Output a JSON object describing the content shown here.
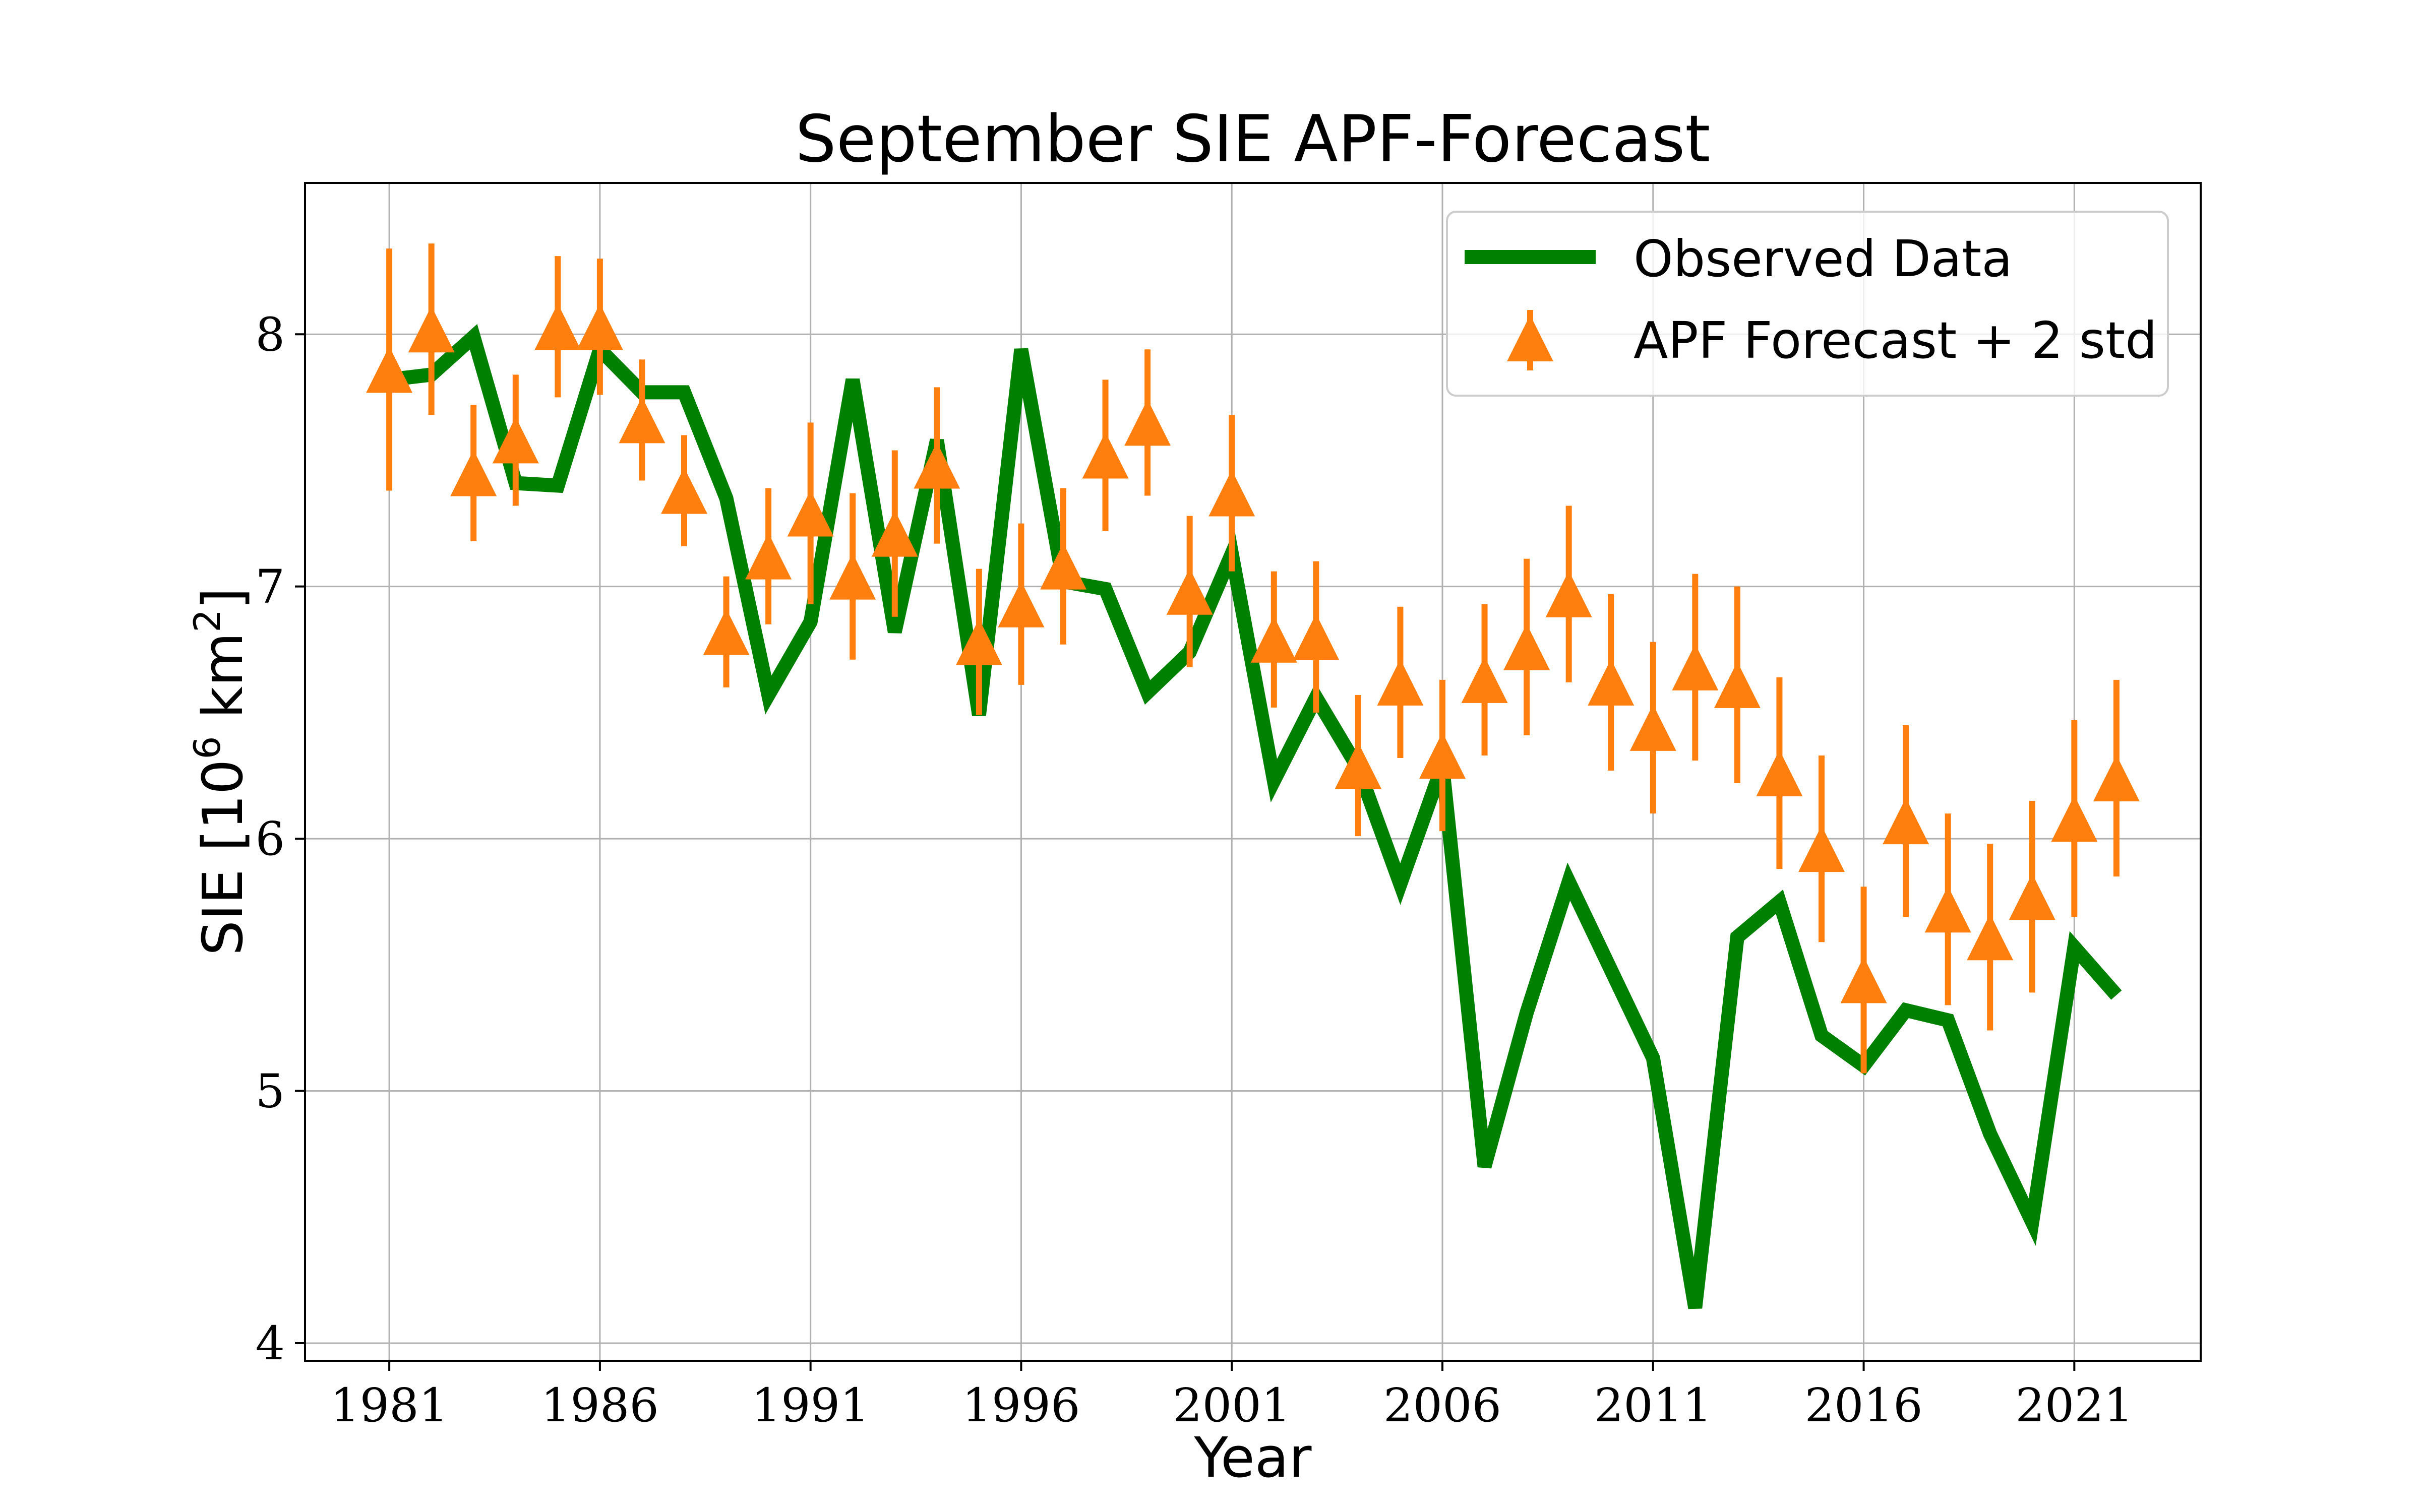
{
  "chart_data": {
    "type": "line",
    "title": "September SIE APF-Forecast",
    "xlabel": "Year",
    "ylabel": "SIE [10^6 km^2]",
    "ylabel_parts": {
      "main": "SIE [10",
      "exp1": "6",
      "mid": " km",
      "exp2": "2",
      "end": "]"
    },
    "xlim": [
      1979,
      2024
    ],
    "ylim": [
      3.93,
      8.6
    ],
    "xticks": [
      1981,
      1986,
      1991,
      1996,
      2001,
      2006,
      2011,
      2016,
      2021
    ],
    "yticks": [
      4,
      5,
      6,
      7,
      8
    ],
    "grid": true,
    "legend_position": "top-right",
    "colors": {
      "observed": "#008000",
      "forecast": "#ff7f0e"
    },
    "series": [
      {
        "name": "Observed Data",
        "x": [
          1981,
          1982,
          1983,
          1984,
          1985,
          1986,
          1987,
          1988,
          1989,
          1990,
          1991,
          1992,
          1993,
          1994,
          1995,
          1996,
          1997,
          1998,
          1999,
          2000,
          2001,
          2002,
          2003,
          2004,
          2005,
          2006,
          2007,
          2008,
          2009,
          2010,
          2011,
          2012,
          2013,
          2014,
          2015,
          2016,
          2017,
          2018,
          2019,
          2020,
          2021,
          2022
        ],
        "y": [
          7.82,
          7.84,
          7.99,
          7.41,
          7.4,
          7.94,
          7.77,
          7.77,
          7.35,
          6.57,
          6.86,
          7.82,
          6.82,
          7.58,
          6.49,
          7.94,
          7.02,
          6.99,
          6.58,
          6.74,
          7.13,
          6.23,
          6.56,
          6.28,
          5.82,
          6.29,
          4.7,
          5.31,
          5.83,
          5.48,
          5.13,
          4.14,
          5.61,
          5.75,
          5.22,
          5.1,
          5.32,
          5.28,
          4.83,
          4.48,
          5.57,
          5.38
        ]
      },
      {
        "name": "APF Forecast + 2 std",
        "x": [
          1981,
          1982,
          1983,
          1984,
          1985,
          1986,
          1987,
          1988,
          1989,
          1990,
          1991,
          1992,
          1993,
          1994,
          1995,
          1996,
          1997,
          1998,
          1999,
          2000,
          2001,
          2002,
          2003,
          2004,
          2005,
          2006,
          2007,
          2008,
          2009,
          2010,
          2011,
          2012,
          2013,
          2014,
          2015,
          2016,
          2017,
          2018,
          2019,
          2020,
          2021,
          2022
        ],
        "y": [
          7.86,
          8.02,
          7.45,
          7.58,
          8.03,
          8.03,
          7.66,
          7.38,
          6.82,
          7.12,
          7.29,
          7.04,
          7.21,
          7.48,
          6.78,
          6.93,
          7.08,
          7.52,
          7.65,
          6.98,
          7.37,
          6.79,
          6.8,
          6.29,
          6.62,
          6.33,
          6.63,
          6.76,
          6.97,
          6.62,
          6.44,
          6.68,
          6.61,
          6.26,
          5.96,
          5.44,
          6.07,
          5.72,
          5.61,
          5.77,
          6.08,
          6.24
        ],
        "err": [
          0.48,
          0.34,
          0.27,
          0.26,
          0.28,
          0.27,
          0.24,
          0.22,
          0.22,
          0.27,
          0.36,
          0.33,
          0.33,
          0.31,
          0.29,
          0.32,
          0.31,
          0.3,
          0.29,
          0.3,
          0.31,
          0.27,
          0.3,
          0.28,
          0.3,
          0.3,
          0.3,
          0.35,
          0.35,
          0.35,
          0.34,
          0.37,
          0.39,
          0.38,
          0.37,
          0.37,
          0.38,
          0.38,
          0.37,
          0.38,
          0.39,
          0.39
        ]
      }
    ]
  }
}
